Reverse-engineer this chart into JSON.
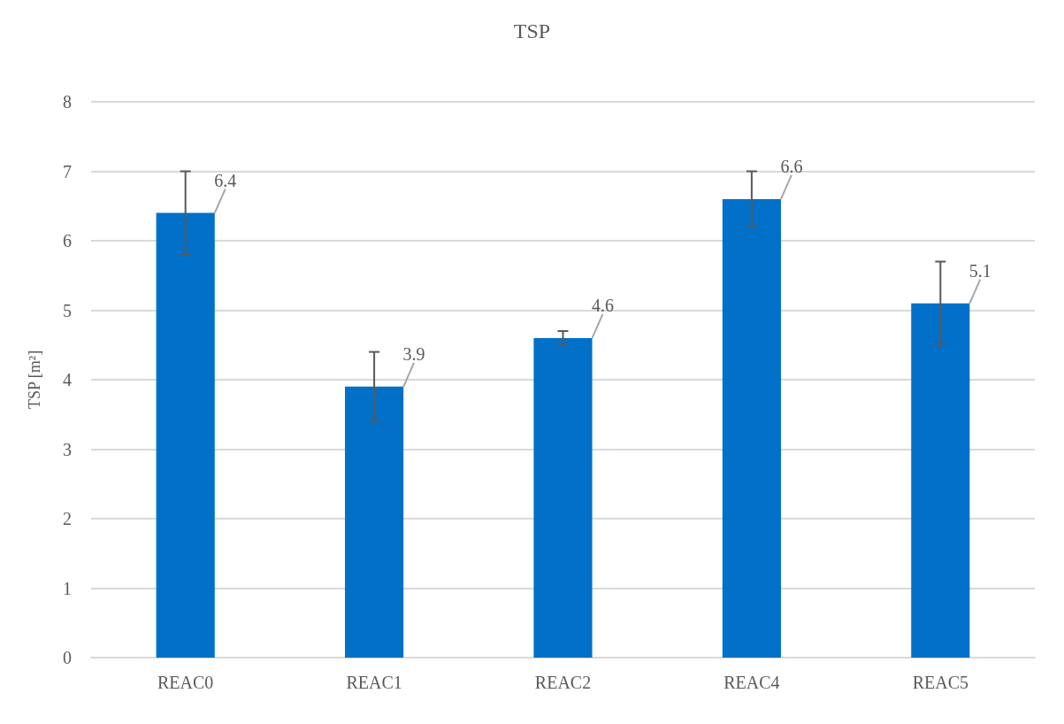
{
  "chart_data": {
    "type": "bar",
    "title": "TSP",
    "ylabel": "TSP [m²]",
    "categories": [
      "REAC0",
      "REAC1",
      "REAC2",
      "REAC4",
      "REAC5"
    ],
    "values": [
      6.4,
      3.9,
      4.6,
      6.6,
      5.1
    ],
    "errors": [
      0.6,
      0.5,
      0.1,
      0.4,
      0.6
    ],
    "color": "#0070c8",
    "ylim": [
      0,
      8
    ],
    "yticks": [
      0,
      1,
      2,
      3,
      4,
      5,
      6,
      7,
      8
    ],
    "grid": "y",
    "data_labels": true
  }
}
